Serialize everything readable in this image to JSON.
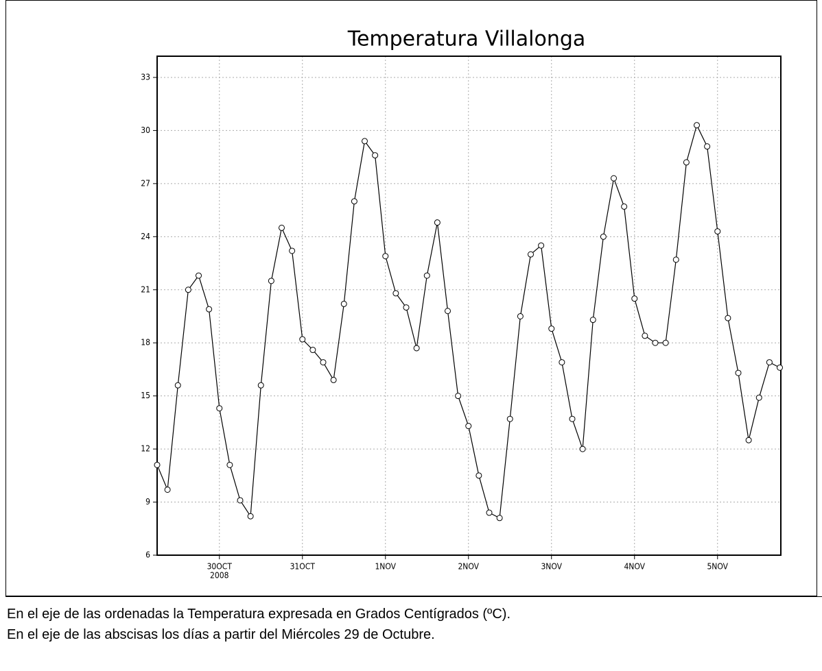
{
  "chart_data": {
    "type": "line",
    "title": "Temperatura Villalonga",
    "categories": [
      null,
      null,
      null,
      null,
      null,
      null,
      "30OCT",
      null,
      null,
      null,
      null,
      null,
      null,
      null,
      "31OCT",
      null,
      null,
      null,
      null,
      null,
      null,
      null,
      "1NOV",
      null,
      null,
      null,
      null,
      null,
      null,
      null,
      "2NOV",
      null,
      null,
      null,
      null,
      null,
      null,
      null,
      "3NOV",
      null,
      null,
      null,
      null,
      null,
      null,
      null,
      "4NOV",
      null,
      null,
      null,
      null,
      null,
      null,
      null,
      "5NOV",
      null,
      null,
      null,
      null,
      null,
      null
    ],
    "year": "2008",
    "values": [
      11.1,
      9.7,
      15.6,
      21.0,
      21.8,
      19.9,
      14.3,
      11.1,
      9.1,
      8.2,
      15.6,
      21.5,
      24.5,
      23.2,
      18.2,
      17.6,
      16.9,
      15.9,
      20.2,
      26.0,
      29.4,
      28.6,
      22.9,
      20.8,
      20.0,
      17.7,
      21.8,
      24.8,
      19.8,
      15.0,
      13.3,
      10.5,
      8.4,
      8.1,
      13.7,
      19.5,
      23.0,
      23.5,
      18.8,
      16.9,
      13.7,
      12.0,
      19.3,
      24.0,
      27.3,
      25.7,
      20.5,
      18.4,
      18.0,
      18.0,
      22.7,
      28.2,
      30.3,
      29.1,
      24.3,
      19.4,
      16.3,
      12.5,
      14.9,
      16.9,
      16.6
    ],
    "color": "#000000",
    "ylim": [
      6,
      34.2
    ],
    "yticks": [
      6,
      9,
      12,
      15,
      18,
      21,
      24,
      27,
      30,
      33
    ],
    "grid": true
  },
  "caption": [
    "En el eje de las ordenadas la Temperatura expresada en Grados Centígrados (ºC).",
    "En el eje de las abscisas los días a partir del Miércoles 29 de Octubre."
  ]
}
